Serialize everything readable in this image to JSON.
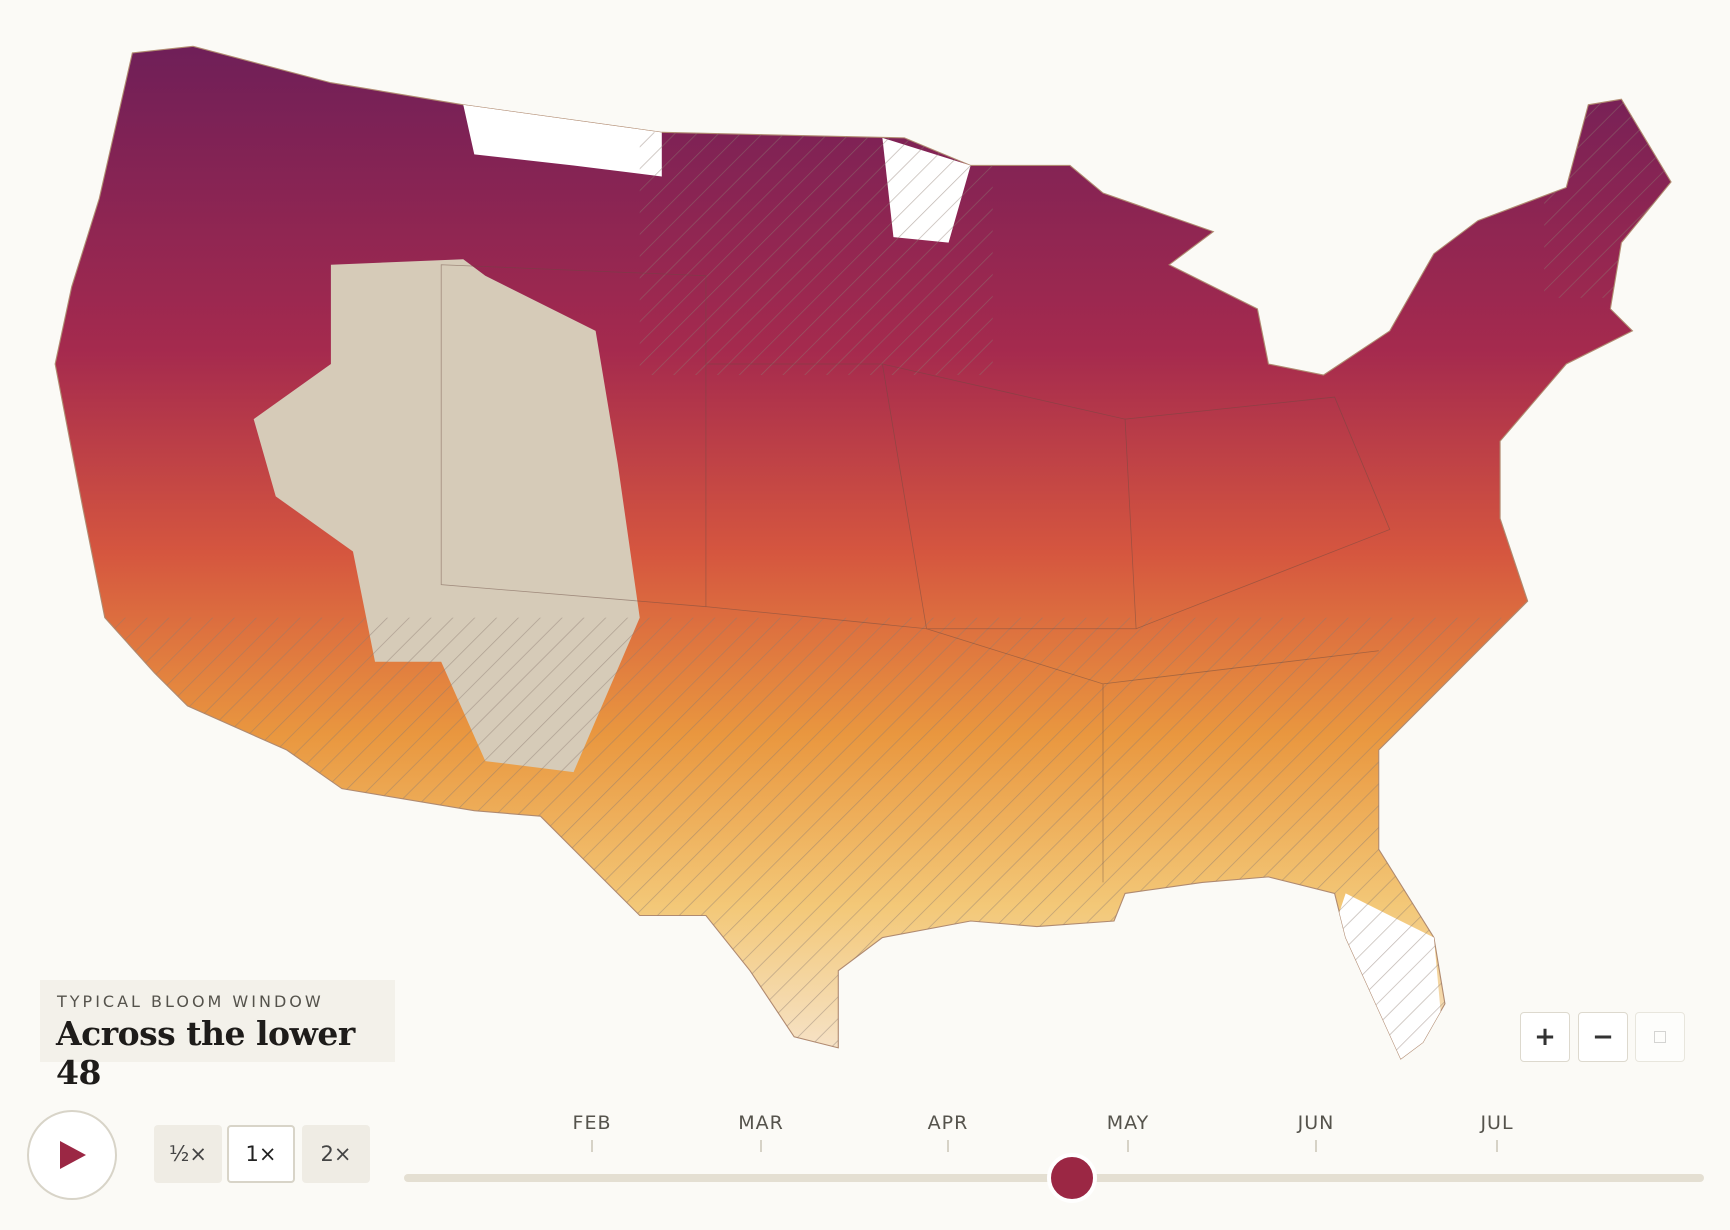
{
  "legend_box": {
    "label": "TYPICAL BLOOM WINDOW",
    "title": "Across the lower 48"
  },
  "speed_buttons": [
    "½×",
    "1×",
    "2×"
  ],
  "zoom_controls": [
    "+",
    "−"
  ],
  "timeline": {
    "months": [
      "FEB",
      "MAR",
      "APR",
      "MAY",
      "JUN",
      "JUL"
    ]
  }
}
